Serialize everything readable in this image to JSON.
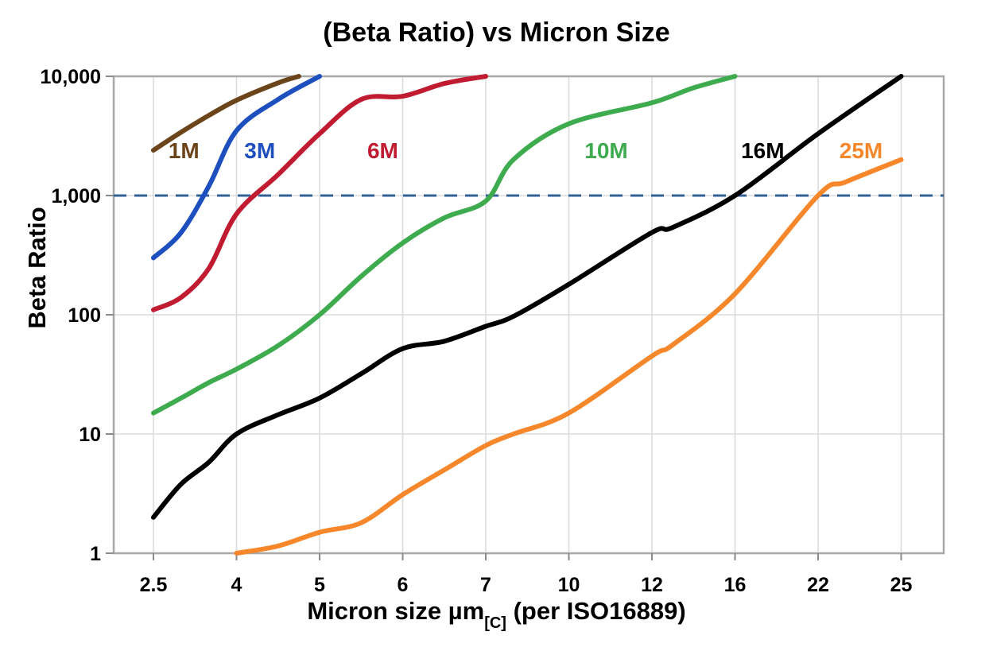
{
  "page": {
    "background": "#ffffff"
  },
  "chart_data": {
    "type": "line",
    "title": "(Beta Ratio) vs Micron Size",
    "ylabel": "Beta Ratio",
    "xlabel": "Micron size µm[C] (per ISO16889)",
    "xlabel_parts": {
      "main": "Micron size µm",
      "sub": "[C]",
      "rest": " (per ISO16889)"
    },
    "x_axis": {
      "scale": "ordinal",
      "ticks": [
        2.5,
        4,
        5,
        6,
        7,
        10,
        12,
        16,
        22,
        25
      ],
      "tick_labels": [
        "2.5",
        "4",
        "5",
        "6",
        "7",
        "10",
        "12",
        "16",
        "22",
        "25"
      ]
    },
    "y_axis": {
      "scale": "log",
      "min": 1,
      "max": 10000,
      "ticks": [
        1,
        10,
        100,
        1000,
        10000
      ],
      "tick_labels": [
        "1",
        "10",
        "100",
        "1,000",
        "10,000"
      ]
    },
    "grid": {
      "show": true,
      "color": "#dcdcdc"
    },
    "frame_color": "#a8a8a8",
    "tick_mark_color": "#8a8a8a",
    "reference_line": {
      "value": 1000,
      "style": "dashed",
      "color": "#336097"
    },
    "series": [
      {
        "name": "1M",
        "color": "#6B4419",
        "label": {
          "text": "1M",
          "x": 3.05,
          "y": 2400
        },
        "points": [
          [
            2.5,
            2400
          ],
          [
            3,
            3400
          ],
          [
            3.5,
            4700
          ],
          [
            4,
            6300
          ],
          [
            4.5,
            8800
          ],
          [
            4.75,
            10000
          ]
        ]
      },
      {
        "name": "3M",
        "color": "#1D50BE",
        "label": {
          "text": "3M",
          "x": 4.28,
          "y": 2400
        },
        "points": [
          [
            2.5,
            300
          ],
          [
            3,
            490
          ],
          [
            3.5,
            1200
          ],
          [
            4,
            3500
          ],
          [
            4.5,
            6400
          ],
          [
            5,
            10000
          ]
        ]
      },
      {
        "name": "6M",
        "color": "#C01B30",
        "label": {
          "text": "6M",
          "x": 5.76,
          "y": 2400
        },
        "points": [
          [
            2.5,
            110
          ],
          [
            3,
            140
          ],
          [
            3.5,
            245
          ],
          [
            4,
            700
          ],
          [
            4.5,
            1500
          ],
          [
            5,
            3300
          ],
          [
            5.5,
            6400
          ],
          [
            6,
            6800
          ],
          [
            6.5,
            8700
          ],
          [
            7,
            10000
          ]
        ]
      },
      {
        "name": "10M",
        "color": "#3EAC4E",
        "label": {
          "text": "10M",
          "x": 10.9,
          "y": 2400
        },
        "points": [
          [
            2.5,
            15
          ],
          [
            3,
            20
          ],
          [
            3.5,
            27
          ],
          [
            4,
            35
          ],
          [
            4.5,
            55
          ],
          [
            5,
            100
          ],
          [
            5.5,
            210
          ],
          [
            6,
            400
          ],
          [
            6.5,
            650
          ],
          [
            7,
            900
          ],
          [
            8,
            2000
          ],
          [
            10,
            4000
          ],
          [
            12,
            6000
          ],
          [
            14,
            8000
          ],
          [
            16,
            10000
          ]
        ]
      },
      {
        "name": "16M",
        "color": "#000000",
        "label": {
          "text": "16M",
          "x": 18.0,
          "y": 2400
        },
        "points": [
          [
            2.5,
            2
          ],
          [
            3,
            3.8
          ],
          [
            3.5,
            5.8
          ],
          [
            4,
            10
          ],
          [
            4.5,
            14.5
          ],
          [
            5,
            20
          ],
          [
            5.5,
            32
          ],
          [
            6,
            52
          ],
          [
            6.5,
            60
          ],
          [
            7,
            80
          ],
          [
            8,
            97
          ],
          [
            10,
            180
          ],
          [
            12,
            490
          ],
          [
            13,
            540
          ],
          [
            16,
            1000
          ],
          [
            22,
            3300
          ],
          [
            25,
            10000
          ]
        ]
      },
      {
        "name": "25M",
        "color": "#F6872B",
        "label": {
          "text": "25M",
          "x": 23.55,
          "y": 2400
        },
        "points": [
          [
            4,
            1
          ],
          [
            4.5,
            1.15
          ],
          [
            5,
            1.5
          ],
          [
            5.5,
            1.8
          ],
          [
            6,
            3.1
          ],
          [
            6.5,
            5
          ],
          [
            7,
            8
          ],
          [
            8,
            10
          ],
          [
            10,
            15
          ],
          [
            12,
            45
          ],
          [
            13,
            56
          ],
          [
            16,
            150
          ],
          [
            22,
            1000
          ],
          [
            23,
            1300
          ],
          [
            25,
            2000
          ]
        ]
      }
    ]
  }
}
